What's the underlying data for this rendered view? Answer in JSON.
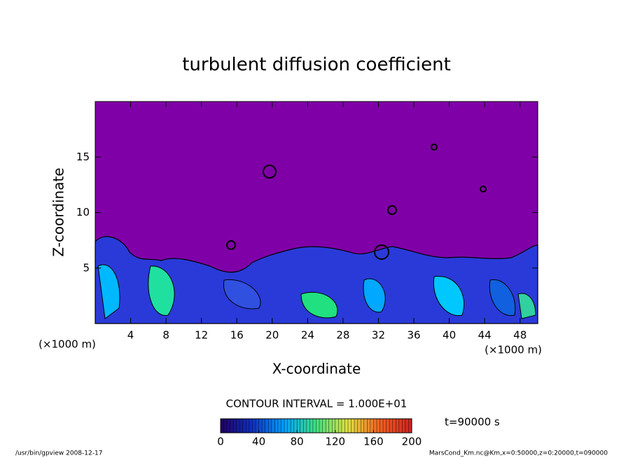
{
  "chart_data": {
    "type": "contour",
    "title": "turbulent diffusion coefficient",
    "xlabel": "X-coordinate",
    "ylabel": "Z-coordinate",
    "x_unit_label": "(×1000 m)",
    "y_unit_label": "(×1000 m)",
    "xlim": [
      0,
      50
    ],
    "xticks": [
      4,
      8,
      12,
      16,
      20,
      24,
      28,
      32,
      36,
      40,
      44,
      48
    ],
    "ylim": [
      0,
      20
    ],
    "yticks": [
      5,
      10,
      15
    ],
    "background_color": "#8000a8",
    "contour_interval_text": "CONTOUR INTERVAL = 1.000E+01",
    "time_text": "t=90000 s",
    "colorbar": {
      "lim": [
        0,
        200
      ],
      "ticks": [
        0,
        40,
        80,
        120,
        160,
        200
      ],
      "colors": [
        "#200060",
        "#1030c0",
        "#00a0ff",
        "#40e080",
        "#e0e040",
        "#f06020",
        "#d02020"
      ]
    },
    "footer_left": "/usr/bin/gpview  2008-12-17",
    "footer_right": "MarsCond_Km.nc@Km,x=0:50000,z=0:20000,t=090000"
  }
}
